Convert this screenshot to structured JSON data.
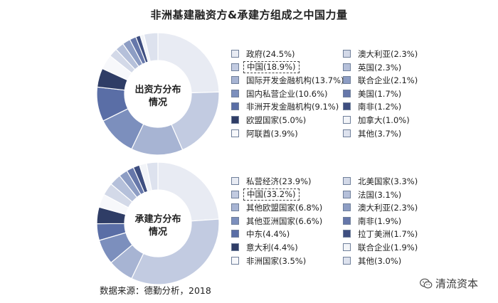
{
  "title": "非洲基建融资方&承建方组成之中国力量",
  "chart_data": [
    {
      "type": "pie",
      "center_label": [
        "出资方分布",
        "情况"
      ],
      "legend_placement": "right",
      "highlight": "中国(18.9%)",
      "slices": [
        {
          "label": "政府(24.5%)",
          "value": 24.5,
          "color": "#e8ebf3"
        },
        {
          "label": "中国(18.9%)",
          "value": 18.9,
          "color": "#c2cbe1"
        },
        {
          "label": "国际开发金融机构(13.7%)",
          "value": 13.7,
          "color": "#a7b4d3"
        },
        {
          "label": "国内私营企业(10.6%)",
          "value": 10.6,
          "color": "#7c8fbd"
        },
        {
          "label": "非洲开发金融机构(9.1%)",
          "value": 9.1,
          "color": "#5a6ea6"
        },
        {
          "label": "欧盟国家(5.0%)",
          "value": 5.0,
          "color": "#2f3d66"
        },
        {
          "label": "阿联酋(3.9%)",
          "value": 3.9,
          "color": "#f7f8fb"
        },
        {
          "label": "澳大利亚(2.3%)",
          "value": 2.3,
          "color": "#d3d9e8"
        },
        {
          "label": "英国(2.3%)",
          "value": 2.3,
          "color": "#b5c0da"
        },
        {
          "label": "联合企业(2.1%)",
          "value": 2.1,
          "color": "#8d9dc4"
        },
        {
          "label": "美国(1.7%)",
          "value": 1.7,
          "color": "#6677aa"
        },
        {
          "label": "南非(1.2%)",
          "value": 1.2,
          "color": "#3e4e80"
        },
        {
          "label": "加拿大(1.0%)",
          "value": 1.0,
          "color": "#f2f4f8"
        },
        {
          "label": "其他(3.7%)",
          "value": 3.7,
          "color": "#dde2ee"
        }
      ]
    },
    {
      "type": "pie",
      "center_label": [
        "承建方分布",
        "情况"
      ],
      "legend_placement": "right",
      "highlight": "中国(33.2%)",
      "slices": [
        {
          "label": "私营经济(23.9%)",
          "value": 23.9,
          "color": "#e8ebf3"
        },
        {
          "label": "中国(33.2%)",
          "value": 33.2,
          "color": "#c2cbe1"
        },
        {
          "label": "其他欧盟国家(6.8%)",
          "value": 6.8,
          "color": "#a7b4d3"
        },
        {
          "label": "其他亚洲国家(6.6%)",
          "value": 6.6,
          "color": "#7c8fbd"
        },
        {
          "label": "中东(4.4%)",
          "value": 4.4,
          "color": "#5a6ea6"
        },
        {
          "label": "意大利(4.4%)",
          "value": 4.4,
          "color": "#2f3d66"
        },
        {
          "label": "非洲国家(3.5%)",
          "value": 3.5,
          "color": "#f7f8fb"
        },
        {
          "label": "北美国家(3.3%)",
          "value": 3.3,
          "color": "#d3d9e8"
        },
        {
          "label": "法国(3.1%)",
          "value": 3.1,
          "color": "#b5c0da"
        },
        {
          "label": "澳大利亚(2.3%)",
          "value": 2.3,
          "color": "#8d9dc4"
        },
        {
          "label": "南非(1.9%)",
          "value": 1.9,
          "color": "#6677aa"
        },
        {
          "label": "拉丁美洲(1.7%)",
          "value": 1.7,
          "color": "#3e4e80"
        },
        {
          "label": "联合企业(1.9%)",
          "value": 1.9,
          "color": "#f2f4f8"
        },
        {
          "label": "其他(3.0%)",
          "value": 3.0,
          "color": "#dde2ee"
        }
      ]
    }
  ],
  "source": "数据来源：德勤分析，2018",
  "watermark": {
    "text": "清流资本",
    "icon": "wechat-icon"
  }
}
